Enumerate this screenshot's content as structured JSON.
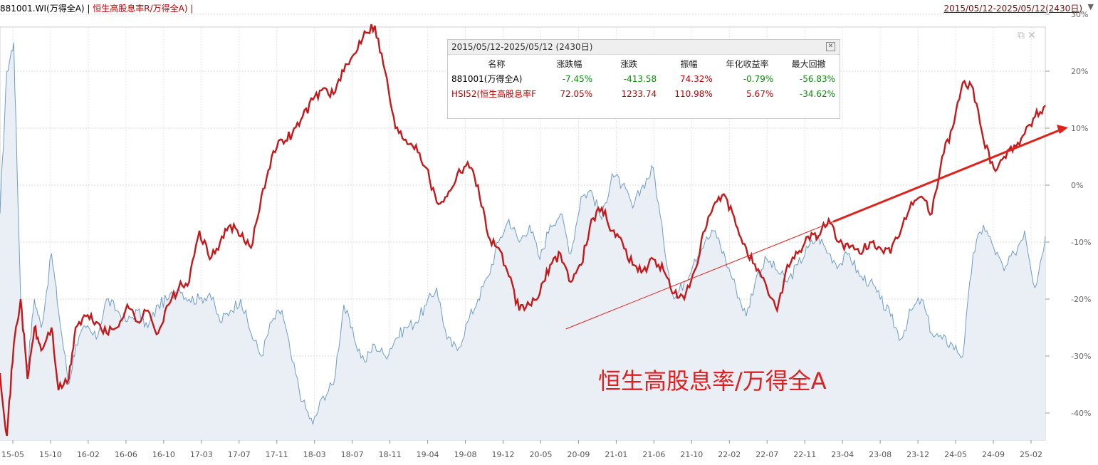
{
  "header": {
    "left_series1": "881001.WI(万得全A) | ",
    "left_series2": "恒生高股息率R/万得全A) |",
    "date_range": "2015/05/12-2025/05/12(2430日)",
    "dropdown_icon": "triangle-down-icon"
  },
  "stats_panel": {
    "title": "2015/05/12-2025/05/12 (2430日)",
    "columns": [
      "名称",
      "涨跌幅",
      "涨跌",
      "振幅",
      "年化收益率",
      "最大回撤"
    ],
    "rows": [
      {
        "name": "881001(万得全A)",
        "change_pct": "-7.45%",
        "change": "-413.58",
        "amplitude": "74.32%",
        "annual_return": "-0.79%",
        "max_drawdown": "-56.83%"
      },
      {
        "name": "HSI52(恒生高股息率F",
        "change_pct": "72.05%",
        "change": "1233.74",
        "amplitude": "110.98%",
        "annual_return": "5.67%",
        "max_drawdown": "-34.62%"
      }
    ]
  },
  "annotation": "恒生高股息率/万得全A",
  "colors": {
    "red_series": "#c4181b",
    "blue_series": "#6f9cc6",
    "annotation": "#e02020"
  },
  "chart_data": {
    "type": "line",
    "y_axis_ticks": [
      "30%",
      "20%",
      "10%",
      "0%",
      "-10%",
      "-20%",
      "-30%",
      "-40%"
    ],
    "ylim": [
      -45,
      30
    ],
    "x_tick_labels": [
      "15-05",
      "15-10",
      "16-02",
      "16-06",
      "16-10",
      "17-03",
      "17-07",
      "17-11",
      "18-03",
      "18-07",
      "18-11",
      "19-04",
      "19-08",
      "19-12",
      "20-05",
      "20-09",
      "21-01",
      "21-06",
      "21-10",
      "22-02",
      "22-07",
      "22-11",
      "23-04",
      "23-08",
      "23-12",
      "24-05",
      "24-09",
      "25-02"
    ],
    "series": [
      {
        "name": "881001.WI(万得全A)",
        "color": "#6f9cc6",
        "points": [
          [
            0,
            -5
          ],
          [
            2,
            20
          ],
          [
            4,
            25
          ],
          [
            6,
            -20
          ],
          [
            8,
            -32
          ],
          [
            10,
            -20
          ],
          [
            12,
            -25
          ],
          [
            15,
            -12
          ],
          [
            17,
            -22
          ],
          [
            20,
            -35
          ],
          [
            22,
            -28
          ],
          [
            25,
            -25
          ],
          [
            28,
            -27
          ],
          [
            31,
            -20
          ],
          [
            34,
            -22
          ],
          [
            37,
            -24
          ],
          [
            40,
            -22
          ],
          [
            43,
            -25
          ],
          [
            46,
            -21
          ],
          [
            49,
            -20
          ],
          [
            52,
            -18
          ],
          [
            55,
            -20
          ],
          [
            58,
            -20
          ],
          [
            61,
            -19
          ],
          [
            64,
            -24
          ],
          [
            67,
            -22
          ],
          [
            70,
            -20
          ],
          [
            73,
            -26
          ],
          [
            76,
            -30
          ],
          [
            79,
            -24
          ],
          [
            82,
            -22
          ],
          [
            85,
            -31
          ],
          [
            88,
            -38
          ],
          [
            91,
            -42
          ],
          [
            94,
            -37
          ],
          [
            97,
            -35
          ],
          [
            100,
            -21
          ],
          [
            103,
            -27
          ],
          [
            106,
            -31
          ],
          [
            109,
            -28
          ],
          [
            112,
            -30
          ],
          [
            115,
            -27
          ],
          [
            118,
            -25
          ],
          [
            121,
            -24
          ],
          [
            124,
            -21
          ],
          [
            127,
            -18
          ],
          [
            130,
            -27
          ],
          [
            133,
            -29
          ],
          [
            136,
            -24
          ],
          [
            139,
            -20
          ],
          [
            142,
            -16
          ],
          [
            145,
            -10
          ],
          [
            148,
            -6
          ],
          [
            151,
            -10
          ],
          [
            154,
            -7
          ],
          [
            157,
            -13
          ],
          [
            160,
            -7
          ],
          [
            163,
            -5
          ],
          [
            166,
            -12
          ],
          [
            169,
            -2
          ],
          [
            172,
            -1
          ],
          [
            175,
            -6
          ],
          [
            178,
            2
          ],
          [
            181,
            0
          ],
          [
            184,
            -4
          ],
          [
            187,
            0
          ],
          [
            190,
            3
          ],
          [
            193,
            -10
          ],
          [
            196,
            -20
          ],
          [
            199,
            -17
          ],
          [
            202,
            -13
          ],
          [
            205,
            -10
          ],
          [
            208,
            -8
          ],
          [
            211,
            -13
          ],
          [
            214,
            -18
          ],
          [
            217,
            -23
          ],
          [
            220,
            -16
          ],
          [
            223,
            -13
          ],
          [
            226,
            -15
          ],
          [
            229,
            -17
          ],
          [
            232,
            -14
          ],
          [
            235,
            -11
          ],
          [
            238,
            -9
          ],
          [
            241,
            -12
          ],
          [
            244,
            -14
          ],
          [
            247,
            -12
          ],
          [
            250,
            -16
          ],
          [
            253,
            -17
          ],
          [
            256,
            -20
          ],
          [
            259,
            -23
          ],
          [
            262,
            -27
          ],
          [
            265,
            -22
          ],
          [
            268,
            -20
          ],
          [
            271,
            -26
          ],
          [
            274,
            -27
          ],
          [
            277,
            -28
          ],
          [
            280,
            -30
          ],
          [
            283,
            -12
          ],
          [
            286,
            -7
          ],
          [
            289,
            -11
          ],
          [
            292,
            -15
          ],
          [
            295,
            -12
          ],
          [
            298,
            -8
          ],
          [
            301,
            -18
          ],
          [
            304,
            -9
          ]
        ]
      },
      {
        "name": "恒生高股息率R/万得全A",
        "color": "#c4181b",
        "points": [
          [
            0,
            -33
          ],
          [
            2,
            -44
          ],
          [
            4,
            -28
          ],
          [
            6,
            -20
          ],
          [
            8,
            -34
          ],
          [
            10,
            -25
          ],
          [
            12,
            -29
          ],
          [
            15,
            -25
          ],
          [
            17,
            -36
          ],
          [
            20,
            -34
          ],
          [
            22,
            -25
          ],
          [
            25,
            -23
          ],
          [
            28,
            -24
          ],
          [
            31,
            -26
          ],
          [
            34,
            -25
          ],
          [
            37,
            -21
          ],
          [
            40,
            -24
          ],
          [
            43,
            -22
          ],
          [
            46,
            -26
          ],
          [
            49,
            -21
          ],
          [
            52,
            -18
          ],
          [
            55,
            -17
          ],
          [
            58,
            -8
          ],
          [
            61,
            -13
          ],
          [
            64,
            -10
          ],
          [
            67,
            -7
          ],
          [
            70,
            -9
          ],
          [
            73,
            -11
          ],
          [
            76,
            -2
          ],
          [
            79,
            5
          ],
          [
            82,
            8
          ],
          [
            85,
            9
          ],
          [
            88,
            12
          ],
          [
            91,
            15
          ],
          [
            94,
            17
          ],
          [
            97,
            16
          ],
          [
            100,
            20
          ],
          [
            103,
            23
          ],
          [
            106,
            27
          ],
          [
            109,
            28
          ],
          [
            112,
            20
          ],
          [
            115,
            10
          ],
          [
            118,
            8
          ],
          [
            121,
            7
          ],
          [
            124,
            3
          ],
          [
            127,
            -3
          ],
          [
            130,
            -2
          ],
          [
            133,
            2
          ],
          [
            136,
            4
          ],
          [
            139,
            0
          ],
          [
            142,
            -9
          ],
          [
            145,
            -11
          ],
          [
            148,
            -16
          ],
          [
            151,
            -22
          ],
          [
            154,
            -21
          ],
          [
            157,
            -19
          ],
          [
            160,
            -14
          ],
          [
            163,
            -12
          ],
          [
            166,
            -17
          ],
          [
            169,
            -14
          ],
          [
            172,
            -6
          ],
          [
            175,
            -4
          ],
          [
            178,
            -8
          ],
          [
            181,
            -10
          ],
          [
            184,
            -14
          ],
          [
            187,
            -15
          ],
          [
            190,
            -13
          ],
          [
            193,
            -15
          ],
          [
            196,
            -19
          ],
          [
            199,
            -20
          ],
          [
            202,
            -15
          ],
          [
            205,
            -8
          ],
          [
            208,
            -3
          ],
          [
            211,
            -2
          ],
          [
            214,
            -7
          ],
          [
            217,
            -11
          ],
          [
            220,
            -15
          ],
          [
            223,
            -18
          ],
          [
            226,
            -22
          ],
          [
            229,
            -14
          ],
          [
            232,
            -12
          ],
          [
            235,
            -9
          ],
          [
            238,
            -9
          ],
          [
            241,
            -6
          ],
          [
            244,
            -10
          ],
          [
            247,
            -11
          ],
          [
            250,
            -12
          ],
          [
            253,
            -10
          ],
          [
            256,
            -11
          ],
          [
            259,
            -12
          ],
          [
            262,
            -8
          ],
          [
            265,
            -3
          ],
          [
            268,
            -2
          ],
          [
            271,
            -5
          ],
          [
            274,
            5
          ],
          [
            277,
            10
          ],
          [
            280,
            18
          ],
          [
            283,
            17
          ],
          [
            286,
            8
          ],
          [
            289,
            3
          ],
          [
            292,
            5
          ],
          [
            295,
            7
          ],
          [
            298,
            9
          ],
          [
            301,
            12
          ],
          [
            304,
            14
          ]
        ]
      }
    ],
    "trendline": {
      "from": [
        160,
        -25
      ],
      "to": [
        304,
        10
      ],
      "color": "#e0201a"
    }
  }
}
